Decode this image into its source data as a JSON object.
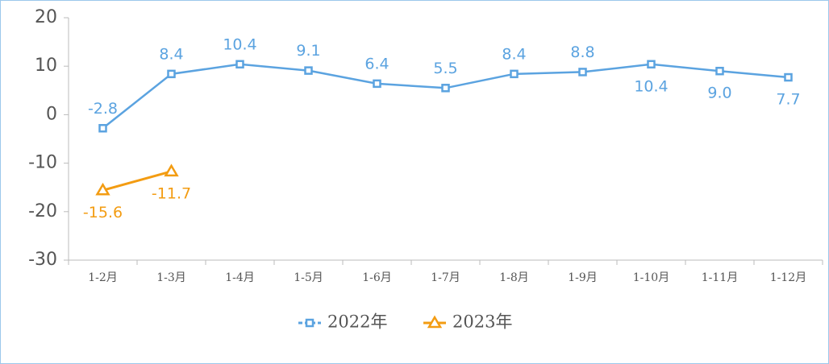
{
  "chart_data": {
    "type": "line",
    "categories": [
      "1-2月",
      "1-3月",
      "1-4月",
      "1-5月",
      "1-6月",
      "1-7月",
      "1-8月",
      "1-9月",
      "1-10月",
      "1-11月",
      "1-12月"
    ],
    "series": [
      {
        "name": "2022年",
        "color": "#5ba3e0",
        "marker": "square",
        "values": [
          -2.8,
          8.4,
          10.4,
          9.1,
          6.4,
          5.5,
          8.4,
          8.8,
          10.4,
          9.0,
          7.7
        ],
        "value_labels": [
          "-2.8",
          "8.4",
          "10.4",
          "9.1",
          "6.4",
          "5.5",
          "8.4",
          "8.8",
          "10.4",
          "9.0",
          "7.7"
        ]
      },
      {
        "name": "2023年",
        "color": "#f39c12",
        "marker": "triangle",
        "values": [
          -15.6,
          -11.7,
          null,
          null,
          null,
          null,
          null,
          null,
          null,
          null,
          null
        ]
      }
    ],
    "ylim": [
      -30,
      20
    ],
    "yticks": [
      -30,
      -20,
      -10,
      0,
      10,
      20
    ],
    "grid": false,
    "legend": "bottom"
  }
}
